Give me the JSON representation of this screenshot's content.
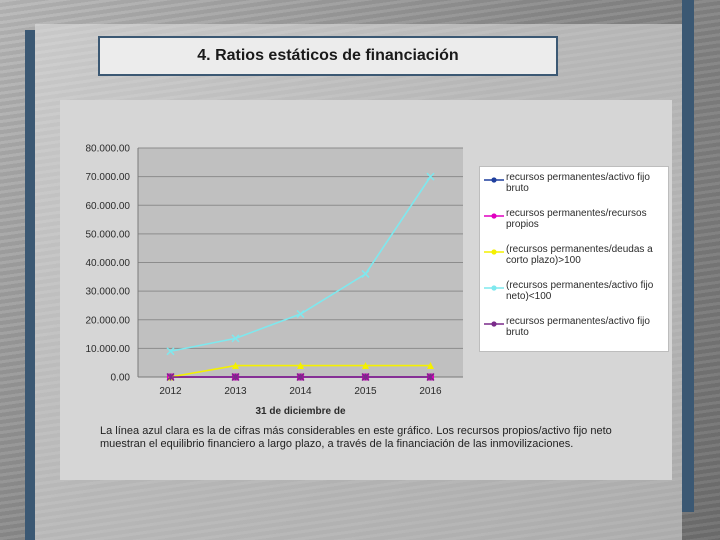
{
  "slide": {
    "title": "4. Ratios estáticos de financiación",
    "caption": "La línea azul clara es la  de cifras más considerables en este gráfico. Los recursos propios/activo fijo neto muestran el equilibrio financiero a largo plazo, a través de la financiación de las inmovilizaciones."
  },
  "colors": {
    "accent_bar": "#3b5873",
    "plot_background": "#c0c0c0"
  },
  "chart_data": {
    "type": "line",
    "xlabel": "31 de diciembre de",
    "ylabel": "",
    "categories": [
      "2012",
      "2013",
      "2014",
      "2015",
      "2016"
    ],
    "ylim": [
      0,
      80000
    ],
    "y_ticks": [
      "0.00",
      "10.000.00",
      "20.000.00",
      "30.000.00",
      "40.000.00",
      "50.000.00",
      "60.000.00",
      "70.000.00",
      "80.000.00"
    ],
    "grid": true,
    "legend_position": "right",
    "series": [
      {
        "name": "recursos permanentes/activo fijo bruto",
        "color": "#1f3f9e",
        "marker": "diamond",
        "values": [
          0,
          0,
          0,
          0,
          0
        ]
      },
      {
        "name": "recursos permanentes/recursos propios",
        "color": "#e000c0",
        "marker": "square",
        "values": [
          0,
          0,
          0,
          0,
          0
        ]
      },
      {
        "name": "(recursos permanentes/deudas a corto plazo)>100",
        "color": "#f4f000",
        "marker": "triangle",
        "values": [
          0,
          4000,
          4000,
          4000,
          4000
        ]
      },
      {
        "name": "(recursos permanentes/activo fijo neto)<100",
        "color": "#7ee8ee",
        "marker": "x",
        "values": [
          9000,
          13500,
          22000,
          36000,
          70000
        ]
      },
      {
        "name": "recursos permanentes/activo fijo bruto",
        "color": "#7a2a8a",
        "marker": "star",
        "values": [
          0,
          0,
          0,
          0,
          0
        ]
      }
    ]
  }
}
